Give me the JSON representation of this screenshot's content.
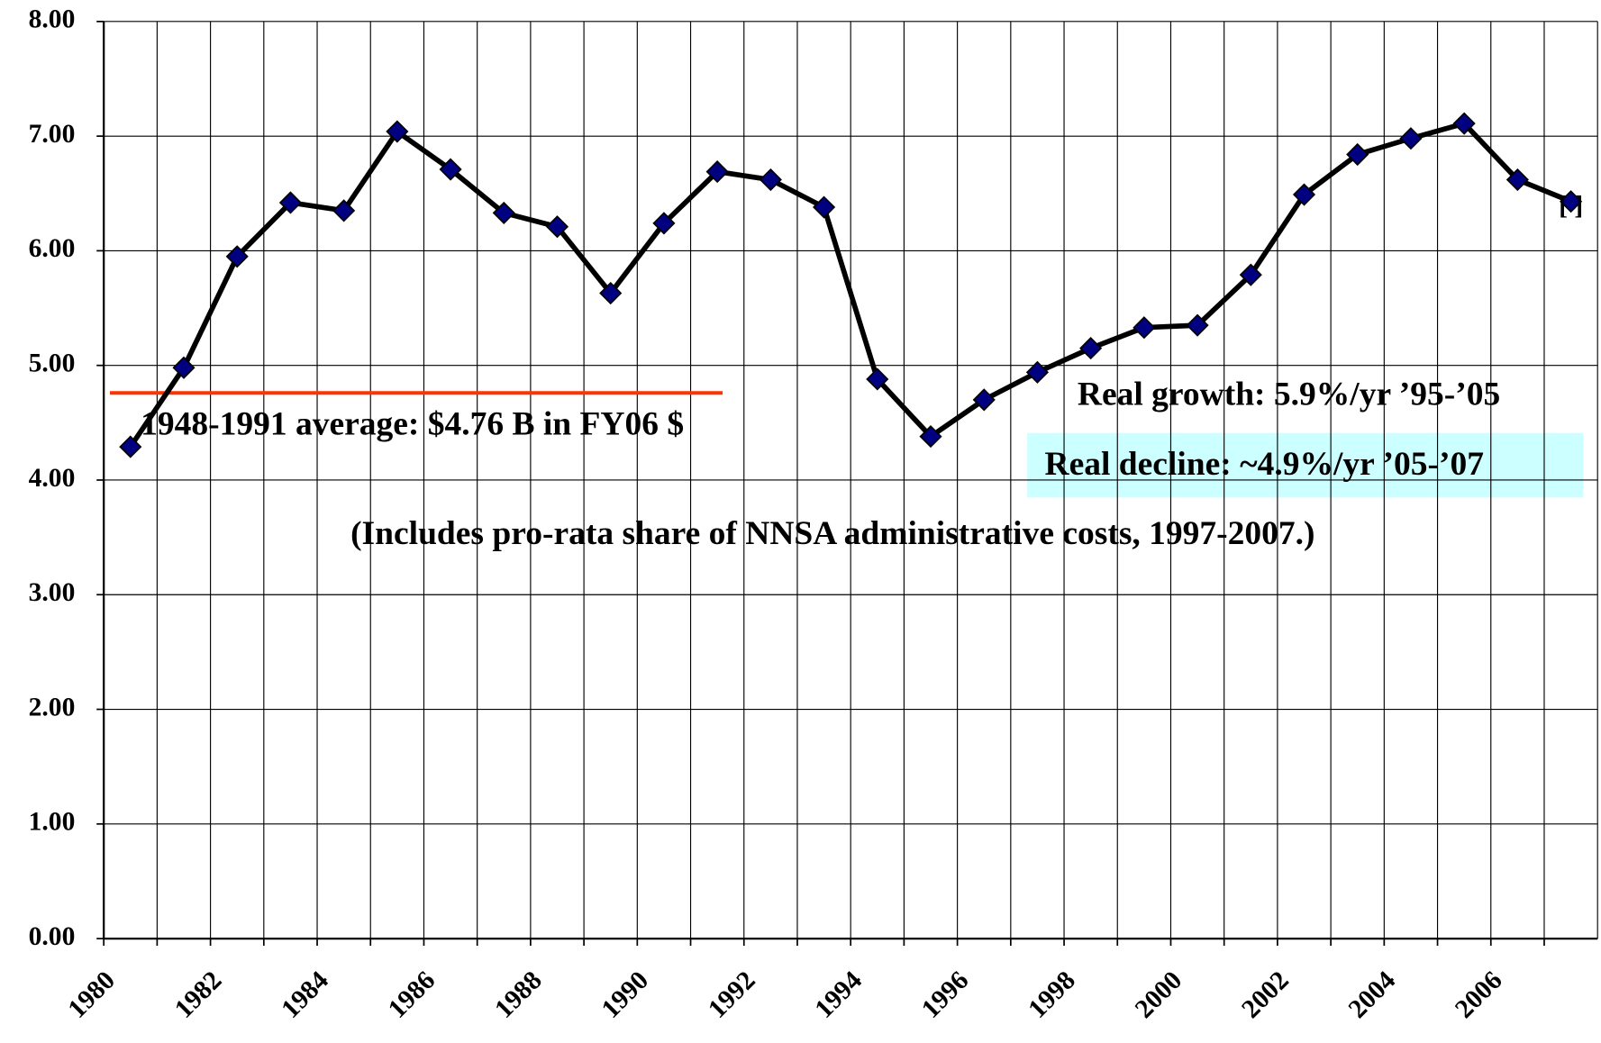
{
  "chart_data": {
    "type": "line",
    "categories": [
      "1980",
      null,
      "1982",
      null,
      "1984",
      null,
      "1986",
      null,
      "1988",
      null,
      "1990",
      null,
      "1992",
      null,
      "1994",
      null,
      "1996",
      null,
      "1998",
      null,
      "2000",
      null,
      "2002",
      null,
      "2004",
      null,
      "2006",
      null
    ],
    "series": [
      {
        "name": null,
        "color": "#000000",
        "marker_color": "#000080",
        "values": [
          4.29,
          4.98,
          5.95,
          6.42,
          6.35,
          7.04,
          6.71,
          6.33,
          6.21,
          5.63,
          6.24,
          6.69,
          6.62,
          6.38,
          4.88,
          4.38,
          4.7,
          4.94,
          5.15,
          5.33,
          5.35,
          5.79,
          6.49,
          6.84,
          6.98,
          7.11,
          6.62,
          6.43
        ]
      }
    ],
    "ylim": [
      0,
      8
    ],
    "yticks": [
      {
        "value": 0,
        "label": "0.00"
      },
      {
        "value": 1,
        "label": "1.00"
      },
      {
        "value": 2,
        "label": "2.00"
      },
      {
        "value": 3,
        "label": "3.00"
      },
      {
        "value": 4,
        "label": "4.00"
      },
      {
        "value": 5,
        "label": "5.00"
      },
      {
        "value": 6,
        "label": "6.00"
      },
      {
        "value": 7,
        "label": "7.00"
      },
      {
        "value": 8,
        "label": "8.00"
      }
    ],
    "grid": true,
    "reference_line": {
      "value": 4.76,
      "color": "#ff3300",
      "label": "1948-1991 average: $4.76 B in FY06 $"
    },
    "annotations": [
      "Real growth: 5.9%/yr ’95-’05",
      "Real decline: ~4.9%/yr ’05-’07",
      "(Includes pro-rata share of NNSA administrative costs, 1997-2007.)",
      "[ ]"
    ]
  }
}
